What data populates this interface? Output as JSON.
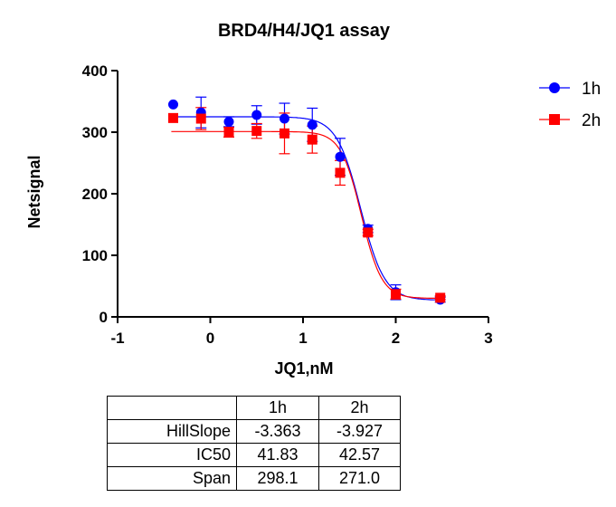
{
  "chart_data": {
    "type": "scatter",
    "title": "BRD4/H4/JQ1 assay",
    "xlabel": "JQ1,nM",
    "ylabel": "Netsignal",
    "xlim": [
      -1,
      3
    ],
    "ylim": [
      0,
      400
    ],
    "xticks": [
      -1,
      0,
      1,
      2,
      3
    ],
    "yticks": [
      0,
      100,
      200,
      300,
      400
    ],
    "legend_position": "top-right",
    "series": [
      {
        "name": "1h",
        "color": "#0000ff",
        "marker": "circle",
        "x": [
          -0.4,
          -0.1,
          0.2,
          0.5,
          0.8,
          1.1,
          1.4,
          1.7,
          2.0,
          2.48
        ],
        "y": [
          345,
          332,
          317,
          328,
          322,
          312,
          260,
          143,
          40,
          28
        ],
        "error": [
          0,
          25,
          8,
          15,
          25,
          27,
          30,
          6,
          12,
          4
        ],
        "fit": {
          "top": 325,
          "bottom": 27,
          "logIC50": 1.6215,
          "hill": 3.363
        }
      },
      {
        "name": "2h",
        "color": "#ff0000",
        "marker": "square",
        "x": [
          -0.4,
          -0.1,
          0.2,
          0.5,
          0.8,
          1.1,
          1.4,
          1.7,
          2.0,
          2.48
        ],
        "y": [
          323,
          322,
          300,
          302,
          298,
          288,
          234,
          137,
          37,
          31
        ],
        "error": [
          0,
          18,
          8,
          12,
          33,
          22,
          20,
          5,
          8,
          3
        ],
        "fit": {
          "top": 301,
          "bottom": 30,
          "logIC50": 1.629,
          "hill": 3.927
        }
      }
    ]
  },
  "table": {
    "header": [
      "",
      "1h",
      "2h"
    ],
    "rows": [
      [
        "HillSlope",
        "-3.363",
        "-3.927"
      ],
      [
        "IC50",
        "41.83",
        "42.57"
      ],
      [
        "Span",
        "298.1",
        "271.0"
      ]
    ]
  }
}
